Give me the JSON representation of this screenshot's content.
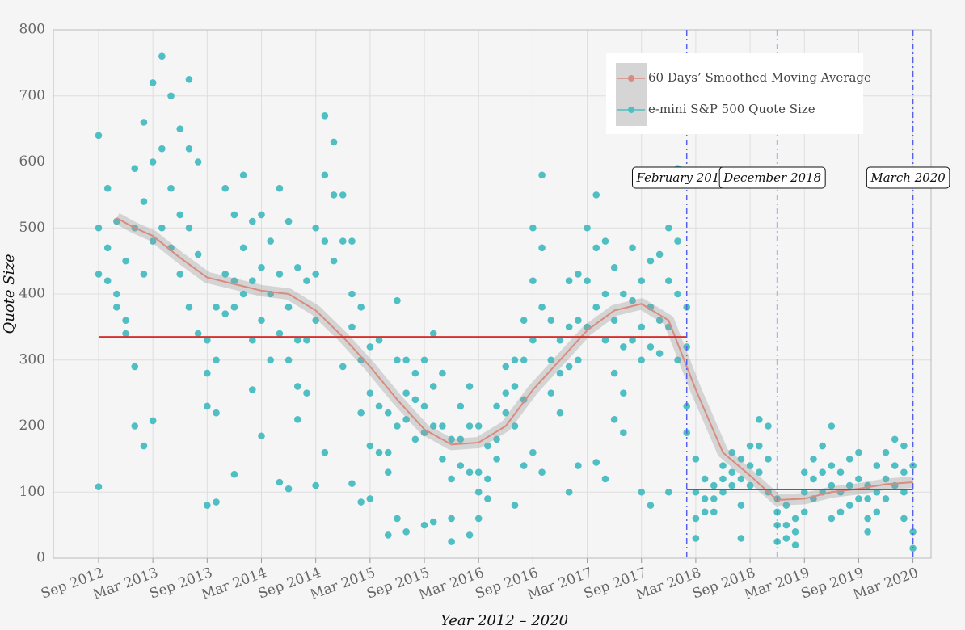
{
  "chart_data": {
    "type": "scatter",
    "xlabel": "Year 2012 – 2020",
    "ylabel": "Quote Size",
    "xlim": [
      "2012-04",
      "2020-05"
    ],
    "ylim": [
      0,
      800
    ],
    "yticks": [
      0,
      100,
      200,
      300,
      400,
      500,
      600,
      700,
      800
    ],
    "xticks": [
      {
        "value": "2012-09",
        "label": "Sep 2012"
      },
      {
        "value": "2013-03",
        "label": "Mar 2013"
      },
      {
        "value": "2013-09",
        "label": "Sep 2013"
      },
      {
        "value": "2014-03",
        "label": "Mar 2014"
      },
      {
        "value": "2014-09",
        "label": "Sep 2014"
      },
      {
        "value": "2015-03",
        "label": "Mar 2015"
      },
      {
        "value": "2015-09",
        "label": "Sep 2015"
      },
      {
        "value": "2016-03",
        "label": "Mar 2016"
      },
      {
        "value": "2016-09",
        "label": "Sep 2016"
      },
      {
        "value": "2017-03",
        "label": "Mar 2017"
      },
      {
        "value": "2017-09",
        "label": "Sep 2017"
      },
      {
        "value": "2018-03",
        "label": "Mar 2018"
      },
      {
        "value": "2018-09",
        "label": "Sep 2018"
      },
      {
        "value": "2019-03",
        "label": "Mar 2019"
      },
      {
        "value": "2019-09",
        "label": "Sep 2019"
      },
      {
        "value": "2020-03",
        "label": "Mar 2020"
      }
    ],
    "grid": true,
    "legend": "top right",
    "series": [
      {
        "name": "60 Days’ Smoothed Moving Average",
        "type": "line",
        "color": "#d98b80",
        "x": [
          "2012-11",
          "2013-01",
          "2013-03",
          "2013-06",
          "2013-09",
          "2013-12",
          "2014-03",
          "2014-06",
          "2014-09",
          "2014-12",
          "2015-03",
          "2015-06",
          "2015-09",
          "2015-12",
          "2016-03",
          "2016-06",
          "2016-09",
          "2016-12",
          "2017-03",
          "2017-06",
          "2017-09",
          "2017-12",
          "2018-03",
          "2018-06",
          "2018-09",
          "2018-12",
          "2019-03",
          "2019-06",
          "2019-09",
          "2019-12",
          "2020-03"
        ],
        "values": [
          515,
          500,
          488,
          455,
          425,
          415,
          405,
          400,
          375,
          335,
          290,
          240,
          195,
          172,
          175,
          200,
          255,
          300,
          345,
          375,
          385,
          360,
          255,
          160,
          125,
          88,
          90,
          100,
          105,
          112,
          115
        ]
      },
      {
        "name": "e-mini S&P 500 Quote Size",
        "type": "scatter",
        "color": "#4fbfc4",
        "x": [
          "2012-09",
          "2012-09",
          "2012-09",
          "2012-09",
          "2012-10",
          "2012-10",
          "2012-10",
          "2012-11",
          "2012-11",
          "2012-11",
          "2012-12",
          "2012-12",
          "2012-12",
          "2013-01",
          "2013-01",
          "2013-01",
          "2013-01",
          "2013-02",
          "2013-02",
          "2013-02",
          "2013-02",
          "2013-03",
          "2013-03",
          "2013-03",
          "2013-03",
          "2013-04",
          "2013-04",
          "2013-04",
          "2013-05",
          "2013-05",
          "2013-05",
          "2013-06",
          "2013-06",
          "2013-06",
          "2013-07",
          "2013-07",
          "2013-07",
          "2013-07",
          "2013-08",
          "2013-08",
          "2013-08",
          "2013-09",
          "2013-09",
          "2013-09",
          "2013-09",
          "2013-10",
          "2013-10",
          "2013-10",
          "2013-10",
          "2013-11",
          "2013-11",
          "2013-11",
          "2013-12",
          "2013-12",
          "2013-12",
          "2013-12",
          "2014-01",
          "2014-01",
          "2014-01",
          "2014-02",
          "2014-02",
          "2014-02",
          "2014-02",
          "2014-03",
          "2014-03",
          "2014-03",
          "2014-03",
          "2014-04",
          "2014-04",
          "2014-04",
          "2014-05",
          "2014-05",
          "2014-05",
          "2014-05",
          "2014-06",
          "2014-06",
          "2014-06",
          "2014-06",
          "2014-07",
          "2014-07",
          "2014-07",
          "2014-07",
          "2014-08",
          "2014-08",
          "2014-08",
          "2014-09",
          "2014-09",
          "2014-09",
          "2014-09",
          "2014-10",
          "2014-10",
          "2014-10",
          "2014-10",
          "2014-11",
          "2014-11",
          "2014-11",
          "2014-12",
          "2014-12",
          "2014-12",
          "2015-01",
          "2015-01",
          "2015-01",
          "2015-01",
          "2015-02",
          "2015-02",
          "2015-02",
          "2015-02",
          "2015-03",
          "2015-03",
          "2015-03",
          "2015-03",
          "2015-04",
          "2015-04",
          "2015-04",
          "2015-05",
          "2015-05",
          "2015-05",
          "2015-05",
          "2015-06",
          "2015-06",
          "2015-06",
          "2015-06",
          "2015-07",
          "2015-07",
          "2015-07",
          "2015-07",
          "2015-08",
          "2015-08",
          "2015-08",
          "2015-09",
          "2015-09",
          "2015-09",
          "2015-09",
          "2015-10",
          "2015-10",
          "2015-10",
          "2015-10",
          "2015-11",
          "2015-11",
          "2015-11",
          "2015-12",
          "2015-12",
          "2015-12",
          "2015-12",
          "2016-01",
          "2016-01",
          "2016-01",
          "2016-02",
          "2016-02",
          "2016-02",
          "2016-02",
          "2016-03",
          "2016-03",
          "2016-03",
          "2016-03",
          "2016-04",
          "2016-04",
          "2016-04",
          "2016-05",
          "2016-05",
          "2016-05",
          "2016-06",
          "2016-06",
          "2016-06",
          "2016-07",
          "2016-07",
          "2016-07",
          "2016-07",
          "2016-08",
          "2016-08",
          "2016-08",
          "2016-08",
          "2016-09",
          "2016-09",
          "2016-09",
          "2016-09",
          "2016-10",
          "2016-10",
          "2016-10",
          "2016-10",
          "2016-11",
          "2016-11",
          "2016-11",
          "2016-12",
          "2016-12",
          "2016-12",
          "2017-01",
          "2017-01",
          "2017-01",
          "2017-01",
          "2017-02",
          "2017-02",
          "2017-02",
          "2017-02",
          "2017-03",
          "2017-03",
          "2017-03",
          "2017-04",
          "2017-04",
          "2017-04",
          "2017-04",
          "2017-05",
          "2017-05",
          "2017-05",
          "2017-05",
          "2017-06",
          "2017-06",
          "2017-06",
          "2017-06",
          "2017-07",
          "2017-07",
          "2017-07",
          "2017-07",
          "2017-08",
          "2017-08",
          "2017-08",
          "2017-09",
          "2017-09",
          "2017-09",
          "2017-09",
          "2017-10",
          "2017-10",
          "2017-10",
          "2017-10",
          "2017-11",
          "2017-11",
          "2017-11",
          "2017-12",
          "2017-12",
          "2017-12",
          "2017-12",
          "2018-01",
          "2018-01",
          "2018-01",
          "2018-01",
          "2018-02",
          "2018-02",
          "2018-02",
          "2018-02",
          "2018-03",
          "2018-03",
          "2018-03",
          "2018-03",
          "2018-04",
          "2018-04",
          "2018-04",
          "2018-05",
          "2018-05",
          "2018-05",
          "2018-06",
          "2018-06",
          "2018-06",
          "2018-07",
          "2018-07",
          "2018-07",
          "2018-08",
          "2018-08",
          "2018-08",
          "2018-08",
          "2018-09",
          "2018-09",
          "2018-09",
          "2018-10",
          "2018-10",
          "2018-10",
          "2018-11",
          "2018-11",
          "2018-11",
          "2018-12",
          "2018-12",
          "2018-12",
          "2018-12",
          "2019-01",
          "2019-01",
          "2019-01",
          "2019-02",
          "2019-02",
          "2019-02",
          "2019-03",
          "2019-03",
          "2019-03",
          "2019-04",
          "2019-04",
          "2019-04",
          "2019-05",
          "2019-05",
          "2019-05",
          "2019-06",
          "2019-06",
          "2019-06",
          "2019-06",
          "2019-07",
          "2019-07",
          "2019-07",
          "2019-08",
          "2019-08",
          "2019-08",
          "2019-09",
          "2019-09",
          "2019-09",
          "2019-10",
          "2019-10",
          "2019-10",
          "2019-10",
          "2019-11",
          "2019-11",
          "2019-11",
          "2019-12",
          "2019-12",
          "2019-12",
          "2020-01",
          "2020-01",
          "2020-01",
          "2020-02",
          "2020-02",
          "2020-02",
          "2020-02",
          "2020-03",
          "2020-03",
          "2020-03"
        ],
        "values": [
          640,
          500,
          430,
          108,
          560,
          470,
          420,
          510,
          400,
          380,
          450,
          360,
          340,
          590,
          500,
          290,
          200,
          660,
          540,
          430,
          170,
          720,
          600,
          480,
          208,
          760,
          620,
          500,
          700,
          560,
          470,
          650,
          520,
          430,
          620,
          500,
          380,
          725,
          600,
          460,
          340,
          330,
          280,
          230,
          80,
          380,
          300,
          220,
          85,
          560,
          430,
          370,
          520,
          420,
          380,
          127,
          580,
          470,
          400,
          510,
          420,
          330,
          255,
          520,
          440,
          360,
          185,
          480,
          400,
          300,
          560,
          430,
          340,
          115,
          510,
          380,
          300,
          105,
          440,
          330,
          260,
          210,
          420,
          330,
          250,
          500,
          430,
          360,
          110,
          670,
          580,
          480,
          160,
          630,
          550,
          450,
          550,
          480,
          290,
          480,
          400,
          350,
          113,
          380,
          300,
          220,
          85,
          320,
          250,
          170,
          90,
          330,
          230,
          160,
          220,
          160,
          130,
          35,
          390,
          300,
          200,
          60,
          300,
          250,
          210,
          40,
          280,
          240,
          180,
          300,
          230,
          190,
          50,
          340,
          260,
          200,
          55,
          280,
          200,
          150,
          180,
          120,
          60,
          25,
          230,
          180,
          140,
          260,
          200,
          130,
          35,
          200,
          130,
          100,
          60,
          170,
          120,
          90,
          230,
          180,
          150,
          290,
          250,
          220,
          300,
          260,
          200,
          80,
          360,
          300,
          240,
          140,
          500,
          420,
          330,
          160,
          580,
          470,
          380,
          130,
          360,
          300,
          250,
          330,
          280,
          220,
          420,
          350,
          290,
          100,
          430,
          360,
          300,
          140,
          500,
          420,
          350,
          550,
          470,
          380,
          145,
          480,
          400,
          330,
          120,
          440,
          360,
          280,
          210,
          400,
          320,
          250,
          190,
          470,
          390,
          330,
          420,
          350,
          300,
          100,
          450,
          380,
          320,
          80,
          460,
          360,
          310,
          500,
          420,
          350,
          100,
          590,
          480,
          400,
          300,
          380,
          320,
          230,
          190,
          150,
          100,
          60,
          30,
          120,
          90,
          70,
          110,
          90,
          70,
          140,
          120,
          100,
          160,
          130,
          110,
          150,
          120,
          80,
          30,
          170,
          140,
          110,
          210,
          170,
          130,
          200,
          150,
          100,
          90,
          70,
          50,
          25,
          80,
          50,
          30,
          60,
          40,
          20,
          130,
          100,
          70,
          150,
          120,
          90,
          170,
          130,
          100,
          200,
          140,
          110,
          60,
          130,
          100,
          70,
          150,
          110,
          80,
          160,
          120,
          90,
          110,
          90,
          60,
          40,
          140,
          100,
          70,
          160,
          120,
          90,
          180,
          140,
          110,
          170,
          130,
          100,
          60,
          140,
          40,
          15
        ]
      }
    ],
    "mean_lines": [
      {
        "x": [
          "2012-09",
          "2018-02"
        ],
        "value": 335
      },
      {
        "x": [
          "2018-02",
          "2020-03"
        ],
        "value": 104
      }
    ],
    "mean_line_color": "#d9302c",
    "events": [
      {
        "x": "2018-02",
        "label": "February 2018"
      },
      {
        "x": "2018-12",
        "label": "December 2018"
      },
      {
        "x": "2020-03",
        "label": "March 2020"
      }
    ],
    "event_color": "#5560ee"
  }
}
